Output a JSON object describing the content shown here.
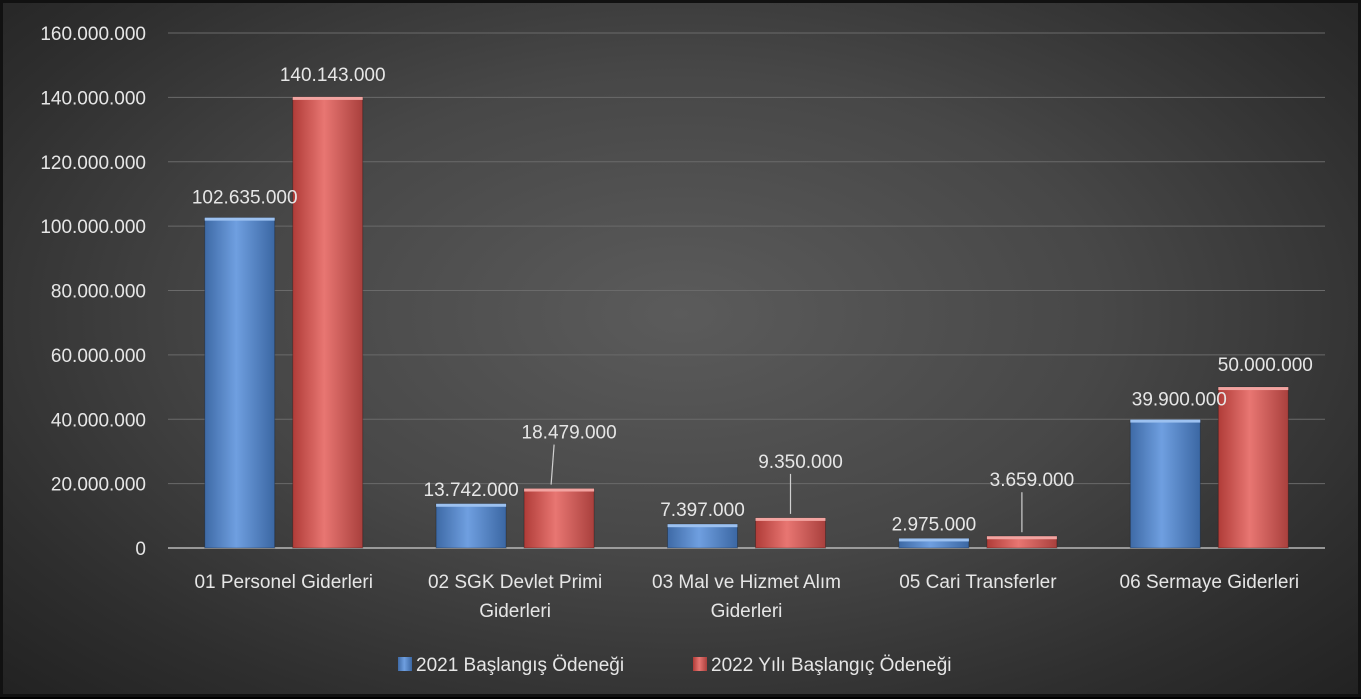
{
  "chart_data": {
    "type": "bar",
    "categories": [
      [
        "01 Personel Giderleri"
      ],
      [
        "02 SGK Devlet Primi",
        "Giderleri"
      ],
      [
        "03 Mal ve Hizmet Alım",
        "Giderleri"
      ],
      [
        "05 Cari Transferler"
      ],
      [
        "06 Sermaye Giderleri"
      ]
    ],
    "series": [
      {
        "name": "2021 Başlangış Ödeneği",
        "values": [
          102635000,
          13742000,
          7397000,
          2975000,
          39900000
        ],
        "labels": [
          "102.635.000",
          "13.742.000",
          "7.397.000",
          "2.975.000",
          "39.900.000"
        ],
        "color": "#4f81bd"
      },
      {
        "name": "2022 Yılı Başlangıç Ödeneği",
        "values": [
          140143000,
          18479000,
          9350000,
          3659000,
          50000000
        ],
        "labels": [
          "140.143.000",
          "18.479.000",
          "9.350.000",
          "3.659.000",
          "50.000.000"
        ],
        "color": "#c0504d"
      }
    ],
    "yticks": [
      "0",
      "20.000.000",
      "40.000.000",
      "60.000.000",
      "80.000.000",
      "100.000.000",
      "120.000.000",
      "140.000.000",
      "160.000.000"
    ],
    "ylim": [
      0,
      160000000
    ],
    "grid": true,
    "legend": "bottom"
  }
}
